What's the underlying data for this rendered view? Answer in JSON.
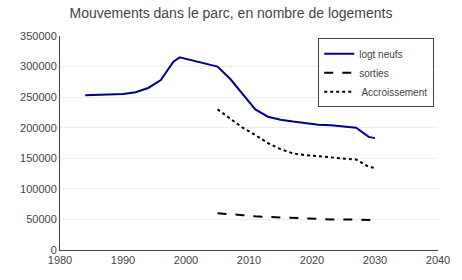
{
  "chart_data": {
    "type": "line",
    "title": "Mouvements dans le parc, en nombre de logements",
    "series": [
      {
        "name": "logt neufs",
        "color": "#00008B",
        "line_style": "solid",
        "x": [
          1984,
          1986,
          1988,
          1990,
          1992,
          1994,
          1996,
          1998,
          1999,
          2001,
          2003,
          2005,
          2007,
          2009,
          2011,
          2013,
          2015,
          2017,
          2019,
          2021,
          2023,
          2025,
          2027,
          2029,
          2030
        ],
        "values": [
          253000,
          254000,
          255000,
          255000,
          258000,
          265000,
          278000,
          308000,
          315000,
          310000,
          306000,
          300000,
          280000,
          255000,
          230000,
          218000,
          213000,
          210000,
          207000,
          205000,
          204000,
          202000,
          200000,
          185000,
          183000
        ]
      },
      {
        "name": "sorties",
        "color": "#000000",
        "line_style": "dashed",
        "x": [
          2005,
          2007,
          2009,
          2011,
          2013,
          2015,
          2017,
          2019,
          2021,
          2023,
          2025,
          2027,
          2029,
          2030
        ],
        "values": [
          60000,
          59000,
          57000,
          55000,
          54000,
          53000,
          52000,
          51000,
          51000,
          50000,
          50000,
          50000,
          49000,
          49000
        ]
      },
      {
        "name": " Accroissement",
        "color": "#000000",
        "line_style": "dotted",
        "x": [
          2005,
          2007,
          2009,
          2011,
          2013,
          2015,
          2017,
          2019,
          2021,
          2023,
          2025,
          2027,
          2029,
          2030
        ],
        "values": [
          230000,
          215000,
          200000,
          188000,
          175000,
          165000,
          158000,
          155000,
          153000,
          151000,
          150000,
          148000,
          136000,
          134000
        ]
      }
    ],
    "xlim": [
      1980,
      2040
    ],
    "xticks": [
      1980,
      1990,
      2000,
      2010,
      2020,
      2030,
      2040
    ],
    "ylim": [
      0,
      350000
    ],
    "yticks": [
      0,
      50000,
      100000,
      150000,
      200000,
      250000,
      300000,
      350000
    ],
    "grid": "y",
    "legend": "upper right"
  }
}
